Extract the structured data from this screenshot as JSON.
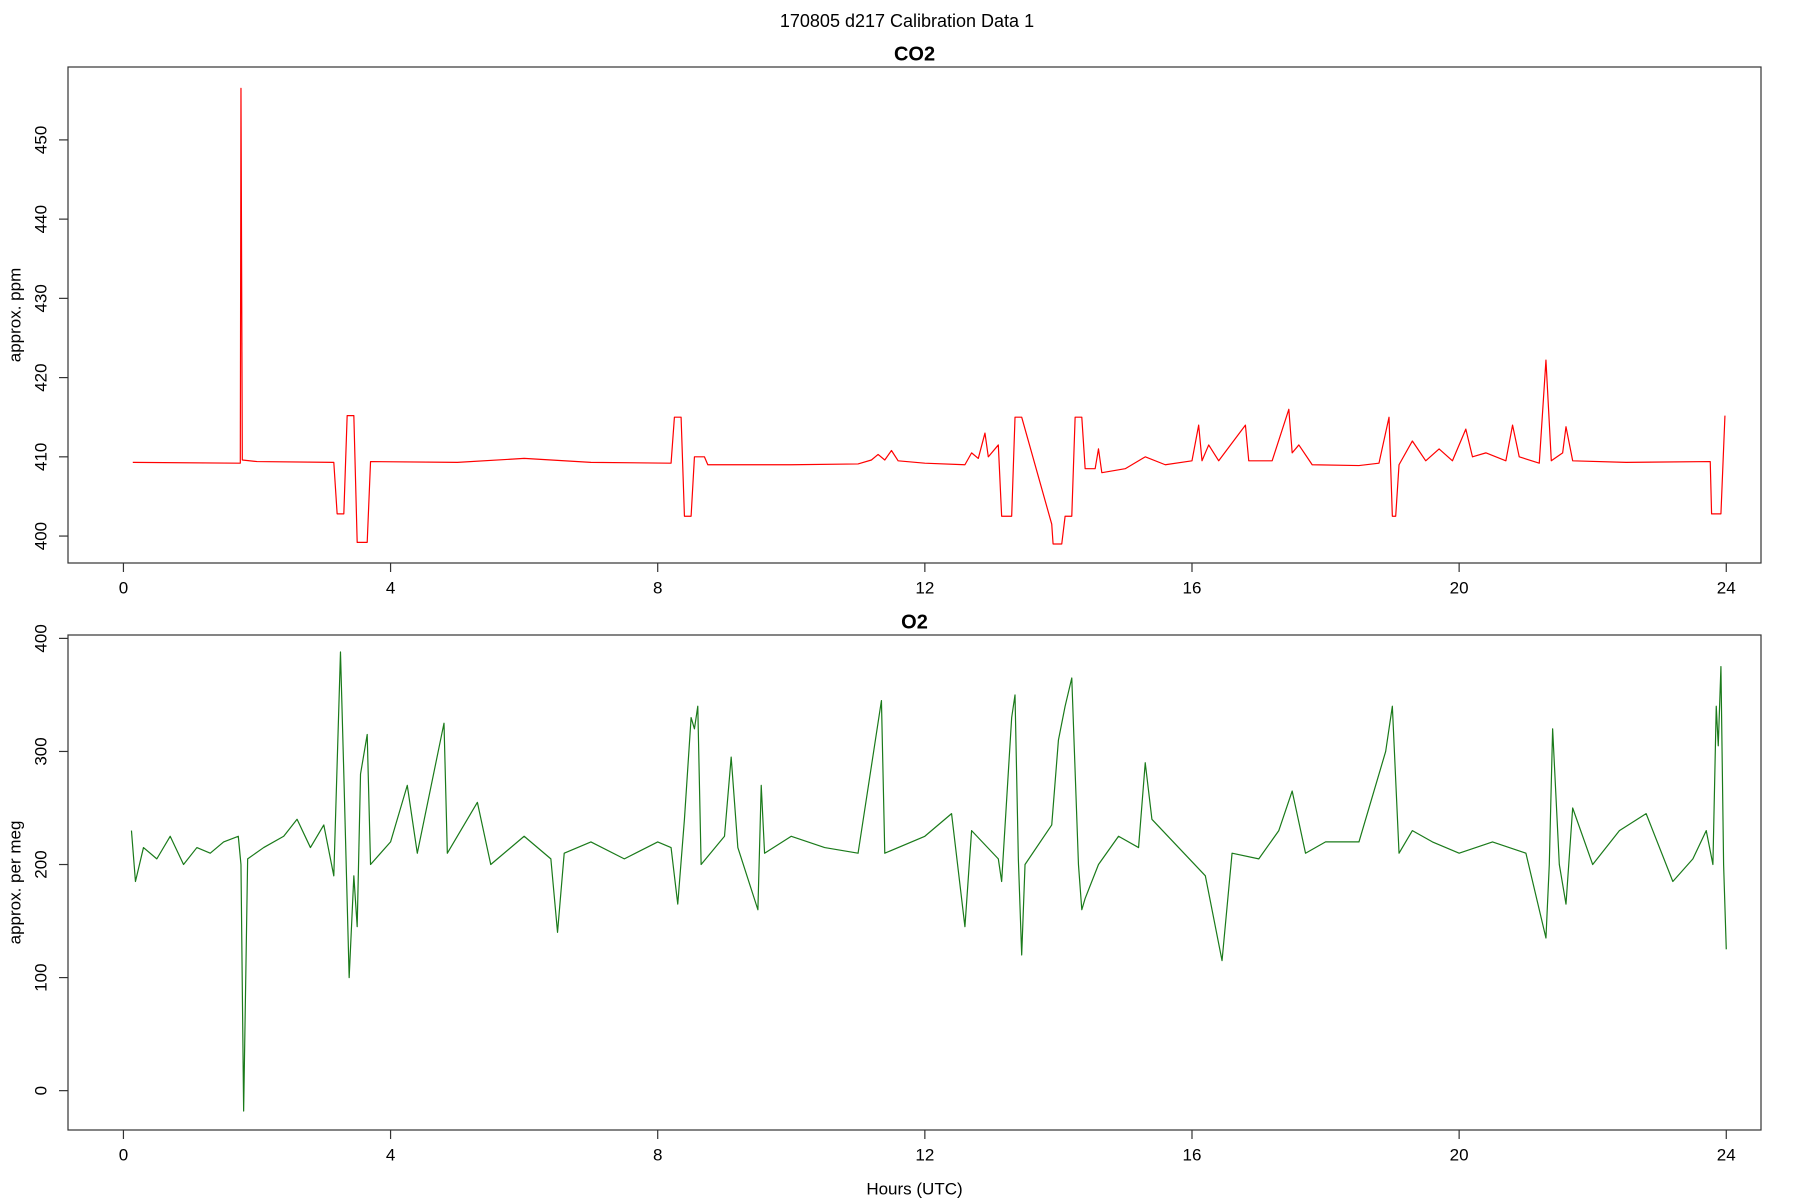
{
  "title": "170805   d217   Calibration Data 1",
  "chart_data": [
    {
      "type": "line",
      "title": "CO2",
      "ylabel": "approx. ppm",
      "color": "#ff0000",
      "xlim": [
        -0.83,
        24.52
      ],
      "ylim": [
        396.6,
        459.2
      ],
      "xticks": [
        0,
        4,
        8,
        12,
        16,
        20,
        24
      ],
      "yticks": [
        400,
        410,
        420,
        430,
        440,
        450
      ],
      "x": [
        0.14,
        1.75,
        1.76,
        1.78,
        2.0,
        3.15,
        3.2,
        3.3,
        3.35,
        3.45,
        3.5,
        3.65,
        3.7,
        5,
        6,
        7,
        8.2,
        8.25,
        8.35,
        8.4,
        8.5,
        8.55,
        8.7,
        8.75,
        10,
        11,
        11.2,
        11.3,
        11.4,
        11.5,
        11.6,
        12,
        12.6,
        12.7,
        12.8,
        12.9,
        12.95,
        13.1,
        13.15,
        13.3,
        13.35,
        13.45,
        13.9,
        13.92,
        14.05,
        14.1,
        14.2,
        14.25,
        14.35,
        14.4,
        14.55,
        14.6,
        14.65,
        15,
        15.3,
        15.6,
        16.0,
        16.1,
        16.15,
        16.25,
        16.4,
        16.8,
        16.85,
        17.2,
        17.45,
        17.5,
        17.6,
        17.8,
        18.5,
        18.8,
        18.95,
        19.0,
        19.05,
        19.1,
        19.3,
        19.5,
        19.7,
        19.9,
        20.1,
        20.2,
        20.4,
        20.7,
        20.8,
        20.9,
        21.2,
        21.3,
        21.38,
        21.55,
        21.6,
        21.7,
        22.5,
        23.76,
        23.78,
        23.92,
        23.98
      ],
      "values": [
        409.3,
        409.2,
        456.5,
        409.6,
        409.4,
        409.3,
        402.8,
        402.8,
        415.2,
        415.2,
        399.2,
        399.2,
        409.4,
        409.3,
        409.8,
        409.3,
        409.2,
        415,
        415,
        402.5,
        402.5,
        410,
        410,
        409,
        409,
        409.1,
        409.6,
        410.3,
        409.6,
        410.8,
        409.5,
        409.2,
        409,
        410.5,
        409.8,
        413,
        410,
        411.5,
        402.5,
        402.5,
        415,
        415,
        401.5,
        399,
        399,
        402.5,
        402.5,
        415,
        415,
        408.5,
        408.5,
        411,
        408,
        408.5,
        410,
        409,
        409.5,
        414,
        409.5,
        411.5,
        409.5,
        414,
        409.5,
        409.5,
        416,
        410.5,
        411.5,
        409,
        408.9,
        409.2,
        415,
        402.5,
        402.5,
        409,
        412,
        409.5,
        411,
        409.5,
        413.5,
        410,
        410.5,
        409.5,
        414,
        410,
        409.2,
        422.2,
        409.5,
        410.5,
        413.8,
        409.5,
        409.3,
        409.4,
        402.8,
        402.8,
        415.2
      ]
    },
    {
      "type": "line",
      "title": "O2",
      "ylabel": "approx. per meg",
      "xlabel": "Hours (UTC)",
      "color": "#1a7a1a",
      "xlim": [
        -0.83,
        24.52
      ],
      "ylim": [
        -34.8,
        403
      ],
      "xticks": [
        0,
        4,
        8,
        12,
        16,
        20,
        24
      ],
      "yticks": [
        0,
        100,
        200,
        300,
        400
      ],
      "x": [
        0.12,
        0.18,
        0.3,
        0.5,
        0.7,
        0.9,
        1.1,
        1.3,
        1.5,
        1.72,
        1.76,
        1.8,
        1.86,
        2.1,
        2.4,
        2.6,
        2.8,
        3.0,
        3.15,
        3.25,
        3.3,
        3.38,
        3.45,
        3.5,
        3.55,
        3.65,
        3.7,
        4.0,
        4.25,
        4.4,
        4.8,
        4.85,
        5.3,
        5.5,
        6.0,
        6.4,
        6.5,
        6.6,
        7.0,
        7.5,
        8.0,
        8.2,
        8.3,
        8.4,
        8.5,
        8.55,
        8.6,
        8.65,
        9.0,
        9.1,
        9.2,
        9.5,
        9.55,
        9.6,
        10,
        10.5,
        11,
        11.35,
        11.4,
        12,
        12.4,
        12.6,
        12.7,
        13.1,
        13.15,
        13.3,
        13.35,
        13.4,
        13.45,
        13.5,
        13.9,
        14.0,
        14.1,
        14.2,
        14.3,
        14.35,
        14.4,
        14.6,
        14.9,
        15.2,
        15.3,
        15.4,
        15.8,
        16.2,
        16.45,
        16.6,
        17.0,
        17.3,
        17.5,
        17.7,
        18.0,
        18.5,
        18.9,
        19.0,
        19.1,
        19.3,
        19.6,
        20,
        20.5,
        21.0,
        21.3,
        21.35,
        21.4,
        21.5,
        21.6,
        21.7,
        22.0,
        22.4,
        22.8,
        23.2,
        23.5,
        23.7,
        23.8,
        23.85,
        23.88,
        23.92,
        23.96,
        24.0
      ],
      "values": [
        230,
        185,
        215,
        205,
        225,
        200,
        215,
        210,
        220,
        225,
        200,
        -18,
        205,
        215,
        225,
        240,
        215,
        235,
        190,
        388,
        280,
        100,
        190,
        145,
        280,
        315,
        200,
        220,
        270,
        210,
        325,
        210,
        255,
        200,
        225,
        205,
        140,
        210,
        220,
        205,
        220,
        215,
        165,
        240,
        330,
        320,
        340,
        200,
        225,
        295,
        215,
        160,
        270,
        210,
        225,
        215,
        210,
        345,
        210,
        225,
        245,
        145,
        230,
        205,
        185,
        330,
        350,
        205,
        120,
        200,
        235,
        310,
        340,
        365,
        200,
        160,
        170,
        200,
        225,
        215,
        290,
        240,
        215,
        190,
        115,
        210,
        205,
        230,
        265,
        210,
        220,
        220,
        300,
        340,
        210,
        230,
        220,
        210,
        220,
        210,
        135,
        200,
        320,
        200,
        165,
        250,
        200,
        230,
        245,
        185,
        205,
        230,
        200,
        340,
        305,
        375,
        200,
        125
      ]
    }
  ]
}
